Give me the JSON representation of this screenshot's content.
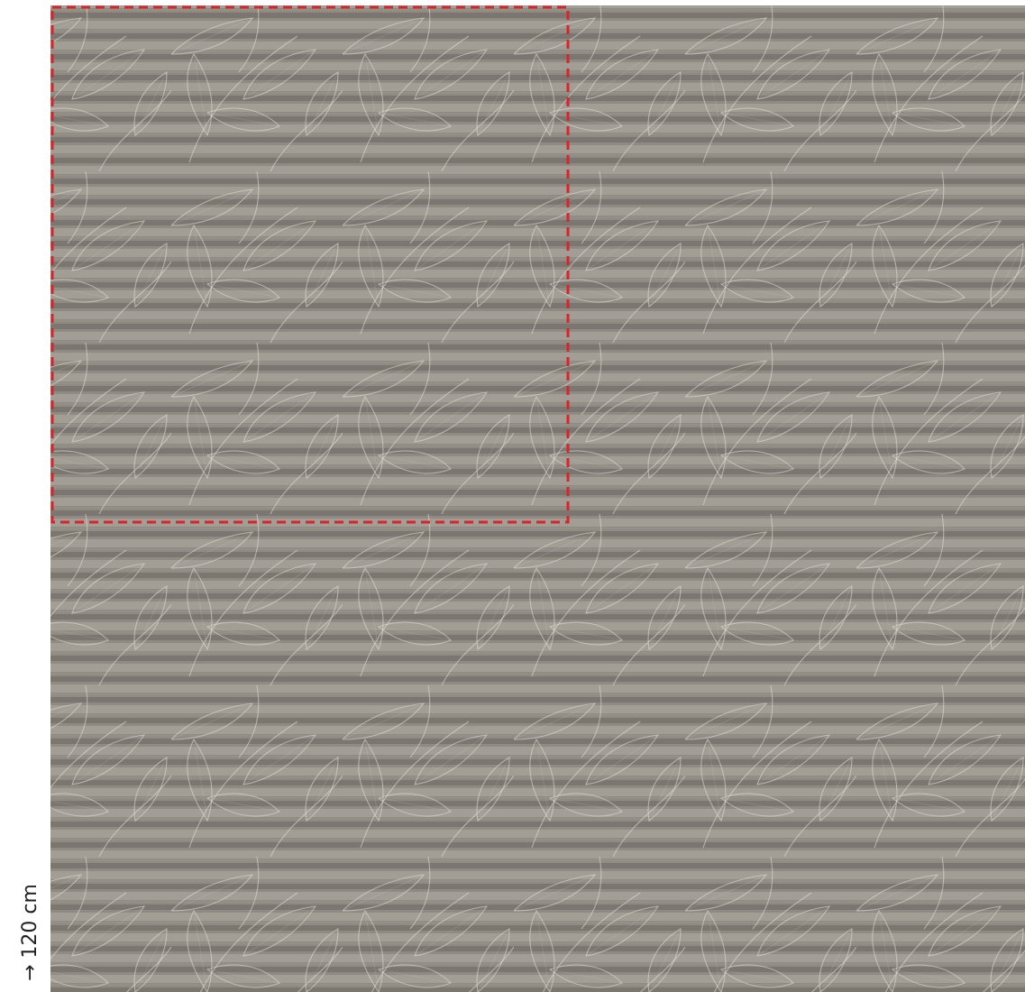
{
  "dimension_label": "→ 120 cm"
}
